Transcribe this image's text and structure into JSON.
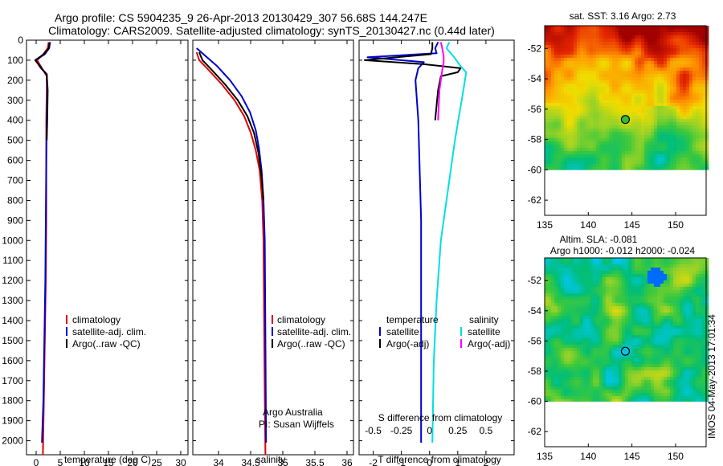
{
  "title_line1": "Argo profile: CS 5904235_9 26-Apr-2013 20130429_307 56.68S 144.247E",
  "title_line2": "Climatology: CARS2009. Satellite-adjusted climatology: synTS_20130427.nc (0.44d later)",
  "depth_ticks": [
    0,
    100,
    200,
    300,
    400,
    500,
    600,
    700,
    800,
    900,
    1000,
    1100,
    1200,
    1300,
    1400,
    1500,
    1600,
    1700,
    1800,
    1900,
    2000
  ],
  "colors": {
    "climatology": "#e00000",
    "satellite": "#0000d0",
    "argo": "#000000",
    "sal_satellite": "#00e0e0",
    "sal_argo": "#ff00ff"
  },
  "chart_data": [
    {
      "type": "line",
      "id": "temperature",
      "xlabel": "temperature (deg C)",
      "xlim": [
        -2,
        31.5
      ],
      "xticks": [
        0,
        5,
        10,
        15,
        20,
        25,
        30
      ],
      "ylim": [
        0,
        2070
      ],
      "legend": [
        "climatology",
        "satellite-adj. clim.",
        "Argo(..raw -QC)"
      ],
      "series": [
        {
          "name": "climatology",
          "color": "#e00000",
          "points": [
            [
              2.6,
              10
            ],
            [
              2.4,
              40
            ],
            [
              1.5,
              70
            ],
            [
              0.2,
              100
            ],
            [
              1.2,
              140
            ],
            [
              2.2,
              180
            ],
            [
              2.2,
              250
            ],
            [
              2.1,
              400
            ],
            [
              2.1,
              600
            ],
            [
              2.1,
              900
            ],
            [
              2.0,
              1200
            ],
            [
              1.8,
              1500
            ],
            [
              1.6,
              1800
            ],
            [
              1.4,
              2070
            ]
          ]
        },
        {
          "name": "satellite-adj. clim.",
          "color": "#0000d0",
          "points": [
            [
              2.9,
              10
            ],
            [
              2.7,
              40
            ],
            [
              1.8,
              70
            ],
            [
              -0.1,
              100
            ],
            [
              1.0,
              140
            ],
            [
              2.2,
              170
            ],
            [
              2.3,
              250
            ],
            [
              2.2,
              400
            ],
            [
              2.1,
              600
            ],
            [
              2.0,
              900
            ],
            [
              1.9,
              1200
            ],
            [
              1.7,
              1500
            ],
            [
              1.5,
              1800
            ],
            [
              1.2,
              2010
            ]
          ]
        },
        {
          "name": "Argo(..raw -QC)",
          "color": "#000000",
          "points": [
            [
              2.8,
              10
            ],
            [
              2.6,
              40
            ],
            [
              1.6,
              70
            ],
            [
              -0.2,
              100
            ],
            [
              1.1,
              140
            ],
            [
              2.2,
              170
            ],
            [
              2.4,
              250
            ],
            [
              2.3,
              400
            ],
            [
              2.2,
              500
            ]
          ]
        }
      ]
    },
    {
      "type": "line",
      "id": "salinity",
      "xlabel": "salinity",
      "xlim": [
        33.6,
        36.1
      ],
      "xticks": [
        34,
        34.5,
        35,
        35.5,
        36
      ],
      "ylim": [
        0,
        2070
      ],
      "legend": [
        "climatology",
        "satellite-adj. clim.",
        "Argo(..raw -QC)"
      ],
      "annotation": [
        "Argo Australia",
        "PI: Susan Wijffels"
      ],
      "series": [
        {
          "name": "climatology",
          "color": "#e00000",
          "points": [
            [
              33.66,
              60
            ],
            [
              33.7,
              100
            ],
            [
              33.85,
              150
            ],
            [
              34.05,
              220
            ],
            [
              34.25,
              300
            ],
            [
              34.4,
              380
            ],
            [
              34.5,
              460
            ],
            [
              34.58,
              550
            ],
            [
              34.64,
              650
            ],
            [
              34.68,
              800
            ],
            [
              34.7,
              1000
            ],
            [
              34.71,
              1400
            ],
            [
              34.72,
              1800
            ],
            [
              34.73,
              2070
            ]
          ]
        },
        {
          "name": "satellite-adj. clim.",
          "color": "#0000d0",
          "points": [
            [
              33.66,
              40
            ],
            [
              33.8,
              80
            ],
            [
              33.98,
              130
            ],
            [
              34.18,
              200
            ],
            [
              34.36,
              280
            ],
            [
              34.49,
              360
            ],
            [
              34.58,
              450
            ],
            [
              34.63,
              540
            ],
            [
              34.67,
              650
            ],
            [
              34.7,
              800
            ],
            [
              34.72,
              1000
            ],
            [
              34.73,
              1500
            ],
            [
              34.74,
              2010
            ]
          ]
        },
        {
          "name": "Argo(..raw -QC)",
          "color": "#000000",
          "points": [
            [
              33.7,
              60
            ],
            [
              33.75,
              100
            ],
            [
              33.9,
              150
            ],
            [
              34.1,
              220
            ],
            [
              34.3,
              300
            ],
            [
              34.45,
              380
            ],
            [
              34.55,
              460
            ],
            [
              34.62,
              560
            ],
            [
              34.67,
              680
            ],
            [
              34.7,
              800
            ]
          ]
        }
      ]
    },
    {
      "type": "line",
      "id": "difference",
      "xlabel": "T difference from climatology",
      "xlabel_top": "S difference from climatology",
      "xlim": [
        -2.5,
        3.0
      ],
      "xticks": [
        -2,
        -1,
        0,
        1,
        2
      ],
      "xticks_s": [
        -0.5,
        -0.25,
        0,
        0.25,
        0.5
      ],
      "ylim": [
        0,
        2070
      ],
      "legend_title_left": "temperature",
      "legend_title_right": "salinity",
      "legend_left": [
        "satellite",
        "Argo(-adj)"
      ],
      "legend_right": [
        "satellite",
        "Argo(-adj)"
      ],
      "series": [
        {
          "name": "T satellite",
          "color": "#0000d0",
          "points": [
            [
              0.3,
              10
            ],
            [
              0.2,
              40
            ],
            [
              0.25,
              65
            ],
            [
              -2.2,
              85
            ],
            [
              -0.2,
              110
            ],
            [
              -0.4,
              140
            ],
            [
              -0.5,
              200
            ],
            [
              -0.4,
              400
            ],
            [
              -0.3,
              900
            ],
            [
              -0.3,
              1400
            ],
            [
              -0.3,
              2010
            ]
          ]
        },
        {
          "name": "T Argo(-adj)",
          "color": "#000000",
          "points": [
            [
              0.1,
              10
            ],
            [
              0.1,
              40
            ],
            [
              0.05,
              70
            ],
            [
              -2.3,
              100
            ],
            [
              -0.2,
              120
            ],
            [
              1.1,
              140
            ],
            [
              1.0,
              160
            ],
            [
              0.4,
              180
            ],
            [
              0.3,
              250
            ],
            [
              0.2,
              400
            ]
          ]
        },
        {
          "name": "S satellite",
          "color": "#00e0e0",
          "points": [
            [
              0.7,
              10
            ],
            [
              0.6,
              40
            ],
            [
              0.9,
              90
            ],
            [
              1.1,
              130
            ],
            [
              1.3,
              160
            ],
            [
              1.2,
              250
            ],
            [
              0.9,
              500
            ],
            [
              0.6,
              800
            ],
            [
              0.4,
              1000
            ],
            [
              0.25,
              1300
            ],
            [
              0.15,
              1600
            ],
            [
              0.1,
              2010
            ]
          ]
        },
        {
          "name": "S Argo(-adj)",
          "color": "#ff00ff",
          "points": [
            [
              0.4,
              10
            ],
            [
              0.45,
              40
            ],
            [
              0.5,
              80
            ],
            [
              0.5,
              110
            ],
            [
              0.45,
              150
            ],
            [
              0.35,
              250
            ],
            [
              0.3,
              400
            ]
          ]
        }
      ]
    },
    {
      "type": "heatmap",
      "id": "sst_map",
      "title": "sat. SST: 3.16 Argo: 2.73",
      "xticks": [
        135,
        140,
        145,
        150
      ],
      "yticks": [
        -52,
        -54,
        -56,
        -58,
        -60,
        -62
      ],
      "xlim": [
        135,
        153.5
      ],
      "ylim": [
        -63,
        -50.5
      ],
      "marker": [
        144.247,
        -56.68
      ]
    },
    {
      "type": "heatmap",
      "id": "sla_map",
      "title_line1": "Altim. SLA: -0.081",
      "title_line2": "Argo h1000: -0.012 h2000: -0.024",
      "xticks": [
        135,
        140,
        145,
        150
      ],
      "yticks": [
        -52,
        -54,
        -56,
        -58,
        -60,
        -62
      ],
      "xlim": [
        135,
        153.5
      ],
      "ylim": [
        -63,
        -50.5
      ],
      "marker": [
        144.247,
        -56.68
      ]
    }
  ],
  "watermark": "IMOS 04-May-2013 17:01:34"
}
